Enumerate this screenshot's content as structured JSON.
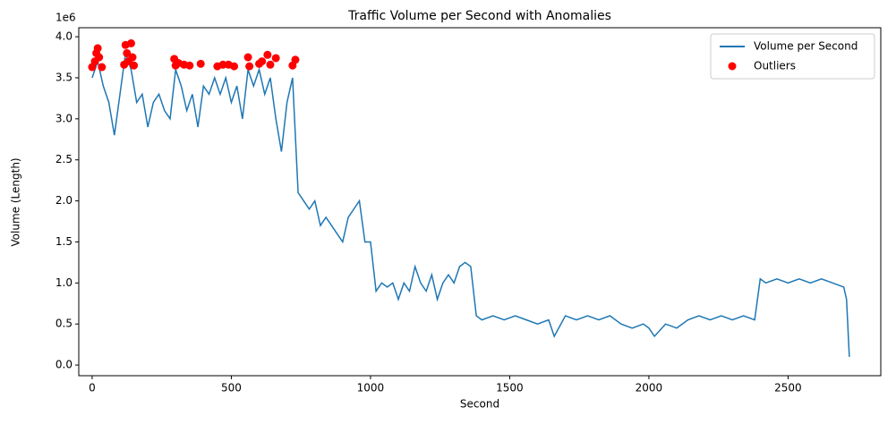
{
  "chart_data": {
    "type": "line",
    "title": "Traffic Volume per Second with Anomalies",
    "xlabel": "Second",
    "ylabel": "Volume (Length)",
    "y_offset_label": "1e6",
    "legend": "upper right",
    "xlim": [
      -48,
      2833
    ],
    "ylim": [
      -0.13,
      4.11
    ],
    "xticks": [
      0,
      500,
      1000,
      1500,
      2000,
      2500
    ],
    "yticks": [
      {
        "value": 0,
        "label": "0.0"
      },
      {
        "value": 0.5,
        "label": "0.5"
      },
      {
        "value": 1,
        "label": "1.0"
      },
      {
        "value": 1.5,
        "label": "1.5"
      },
      {
        "value": 2,
        "label": "2.0"
      },
      {
        "value": 2.5,
        "label": "2.5"
      },
      {
        "value": 3,
        "label": "3.0"
      },
      {
        "value": 3.5,
        "label": "3.5"
      },
      {
        "value": 4,
        "label": "4.0"
      }
    ],
    "series": [
      {
        "name": "Volume per Second",
        "type": "line",
        "color": "#1f77b4",
        "x": [
          0,
          20,
          40,
          60,
          80,
          100,
          120,
          140,
          160,
          180,
          200,
          220,
          240,
          260,
          280,
          300,
          320,
          340,
          360,
          380,
          400,
          420,
          440,
          460,
          480,
          500,
          520,
          540,
          560,
          580,
          600,
          620,
          640,
          660,
          680,
          700,
          720,
          740,
          760,
          780,
          800,
          820,
          840,
          860,
          880,
          900,
          920,
          940,
          960,
          980,
          1000,
          1020,
          1040,
          1060,
          1080,
          1100,
          1120,
          1140,
          1160,
          1180,
          1200,
          1220,
          1240,
          1260,
          1280,
          1300,
          1320,
          1340,
          1360,
          1380,
          1400,
          1440,
          1480,
          1520,
          1560,
          1600,
          1640,
          1660,
          1700,
          1740,
          1780,
          1820,
          1860,
          1900,
          1940,
          1980,
          2000,
          2020,
          2060,
          2100,
          2140,
          2180,
          2220,
          2260,
          2300,
          2340,
          2380,
          2400,
          2420,
          2460,
          2500,
          2540,
          2580,
          2620,
          2660,
          2700,
          2710,
          2720
        ],
        "values": [
          3.5,
          3.7,
          3.4,
          3.2,
          2.8,
          3.3,
          3.8,
          3.6,
          3.2,
          3.3,
          2.9,
          3.2,
          3.3,
          3.1,
          3.0,
          3.6,
          3.4,
          3.1,
          3.3,
          2.9,
          3.4,
          3.3,
          3.5,
          3.3,
          3.5,
          3.2,
          3.4,
          3.0,
          3.6,
          3.4,
          3.6,
          3.3,
          3.5,
          3.0,
          2.6,
          3.2,
          3.5,
          2.1,
          2.0,
          1.9,
          2.0,
          1.7,
          1.8,
          1.7,
          1.6,
          1.5,
          1.8,
          1.9,
          2.0,
          1.5,
          1.5,
          0.9,
          1.0,
          0.95,
          1.0,
          0.8,
          1.0,
          0.9,
          1.2,
          1.0,
          0.9,
          1.1,
          0.8,
          1.0,
          1.1,
          1.0,
          1.2,
          1.25,
          1.2,
          0.6,
          0.55,
          0.6,
          0.55,
          0.6,
          0.55,
          0.5,
          0.55,
          0.35,
          0.6,
          0.55,
          0.6,
          0.55,
          0.6,
          0.5,
          0.45,
          0.5,
          0.45,
          0.35,
          0.5,
          0.45,
          0.55,
          0.6,
          0.55,
          0.6,
          0.55,
          0.6,
          0.55,
          1.05,
          1.0,
          1.05,
          1.0,
          1.05,
          1.0,
          1.05,
          1.0,
          0.95,
          0.8,
          0.1
        ]
      },
      {
        "name": "Outliers",
        "type": "scatter",
        "color": "#ff0000",
        "x": [
          0,
          10,
          15,
          20,
          25,
          35,
          115,
          120,
          125,
          130,
          140,
          145,
          150,
          295,
          300,
          310,
          330,
          350,
          390,
          450,
          470,
          490,
          510,
          560,
          565,
          600,
          610,
          630,
          640,
          660,
          720,
          730
        ],
        "values": [
          3.63,
          3.7,
          3.8,
          3.86,
          3.75,
          3.63,
          3.66,
          3.9,
          3.8,
          3.7,
          3.92,
          3.75,
          3.65,
          3.73,
          3.65,
          3.68,
          3.66,
          3.65,
          3.67,
          3.64,
          3.66,
          3.66,
          3.64,
          3.75,
          3.64,
          3.67,
          3.7,
          3.78,
          3.66,
          3.74,
          3.65,
          3.72
        ]
      }
    ]
  }
}
